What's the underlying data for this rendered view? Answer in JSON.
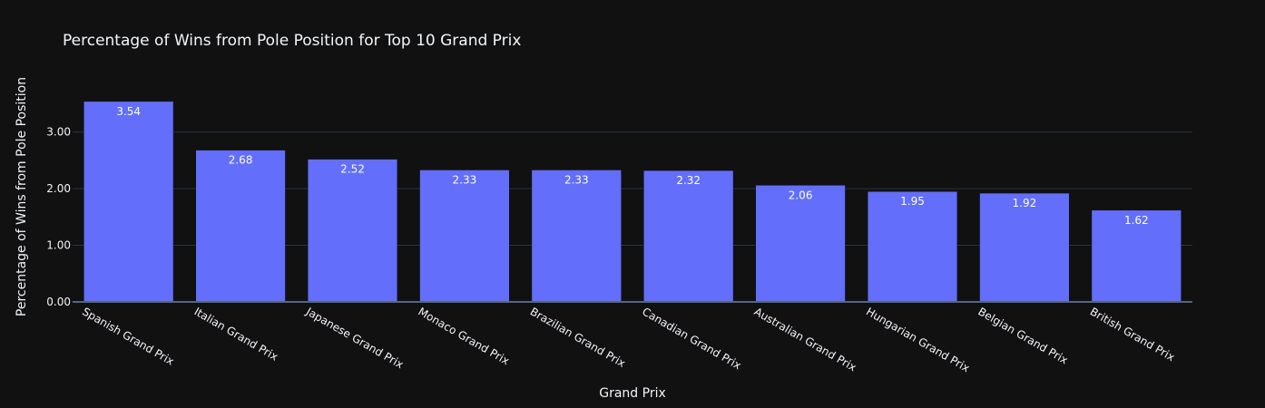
{
  "chart_data": {
    "type": "bar",
    "title": "Percentage of Wins from Pole Position for Top 10 Grand Prix",
    "xlabel": "Grand Prix",
    "ylabel": "Percentage of Wins from Pole Position",
    "categories": [
      "Spanish Grand Prix",
      "Italian Grand Prix",
      "Japanese Grand Prix",
      "Monaco Grand Prix",
      "Brazilian Grand Prix",
      "Canadian Grand Prix",
      "Australian Grand Prix",
      "Hungarian Grand Prix",
      "Belgian Grand Prix",
      "British Grand Prix"
    ],
    "values": [
      3.54,
      2.68,
      2.52,
      2.33,
      2.33,
      2.32,
      2.06,
      1.95,
      1.92,
      1.62
    ],
    "value_labels": [
      "3.54",
      "2.68",
      "2.52",
      "2.33",
      "2.33",
      "2.32",
      "2.06",
      "1.95",
      "1.92",
      "1.62"
    ],
    "yticks": [
      0,
      1,
      2,
      3
    ],
    "ytick_labels": [
      "0.00",
      "1.00",
      "2.00",
      "3.00"
    ],
    "ylim": [
      0,
      3.73
    ],
    "grid": true,
    "legend": "none",
    "colors": {
      "background": "#111111",
      "bar": "#636efa",
      "grid": "#283442",
      "zeroline": "#506784",
      "text": "#f2f5fa"
    }
  }
}
